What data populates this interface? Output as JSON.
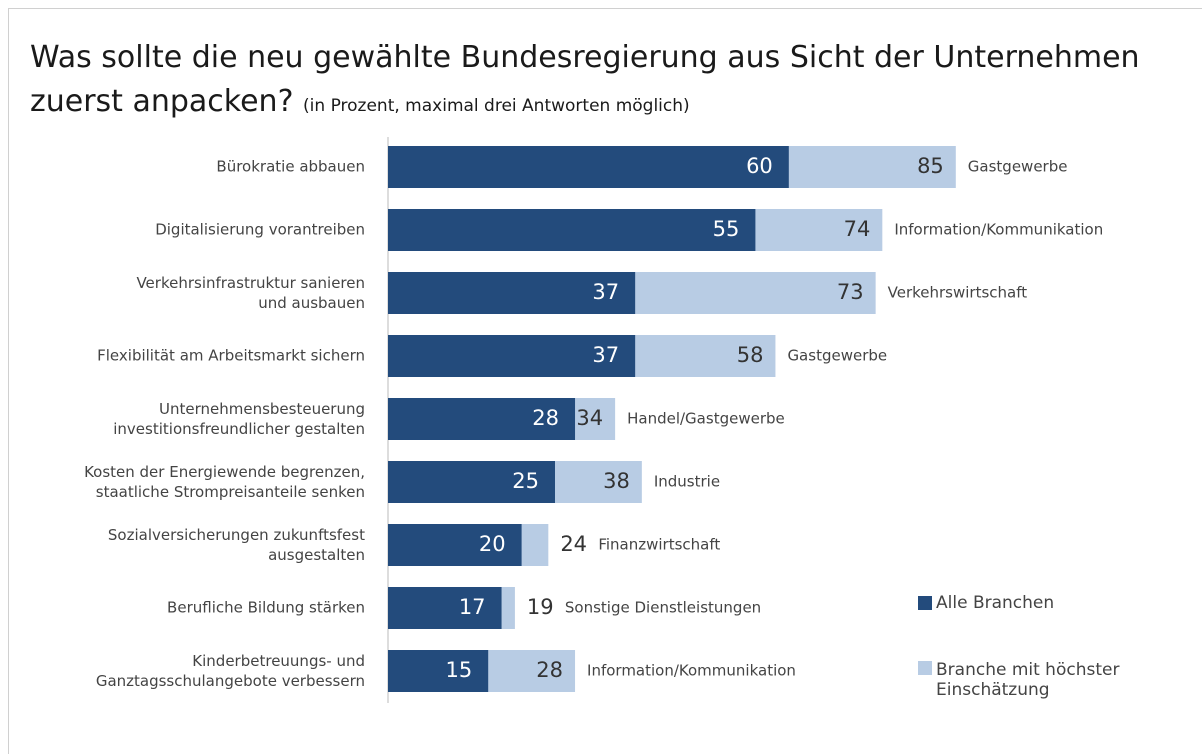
{
  "chart_data": {
    "type": "bar",
    "orientation": "horizontal",
    "title": "Was sollte die neu gewählte Bundesregierung aus Sicht der Unternehmen zuerst anpacken?",
    "subtitle": "(in Prozent, maximal drei Antworten möglich)",
    "categories": [
      "Bürokratie abbauen",
      "Digitalisierung vorantreiben",
      "Verkehrsinfrastruktur sanieren\nund ausbauen",
      "Flexibilität am Arbeitsmarkt sichern",
      "Unternehmensbesteuerung\ninvestitionsfreundlicher gestalten",
      "Kosten der Energiewende begrenzen,\nstaatliche Strompreisanteile senken",
      "Sozialversicherungen zukunftsfest\nausgestalten",
      "Berufliche Bildung stärken",
      "Kinderbetreuungs- und\nGanztagsschulangebote verbessern"
    ],
    "series": [
      {
        "name": "Alle Branchen",
        "color": "#234b7c",
        "values": [
          60,
          55,
          37,
          37,
          28,
          25,
          20,
          17,
          15
        ]
      },
      {
        "name": "Branche mit höchster\nEinschätzung",
        "color": "#b8cce4",
        "values": [
          85,
          74,
          73,
          58,
          34,
          38,
          24,
          19,
          28
        ]
      }
    ],
    "annotations": [
      "Gastgewerbe",
      "Information/Kommunikation",
      "Verkehrswirtschaft",
      "Gastgewerbe",
      "Handel/Gastgewerbe",
      "Industrie",
      "Finanzwirtschaft",
      "Sonstige Dienstleistungen",
      "Information/Kommunikation"
    ],
    "xlim": [
      0,
      100
    ]
  }
}
